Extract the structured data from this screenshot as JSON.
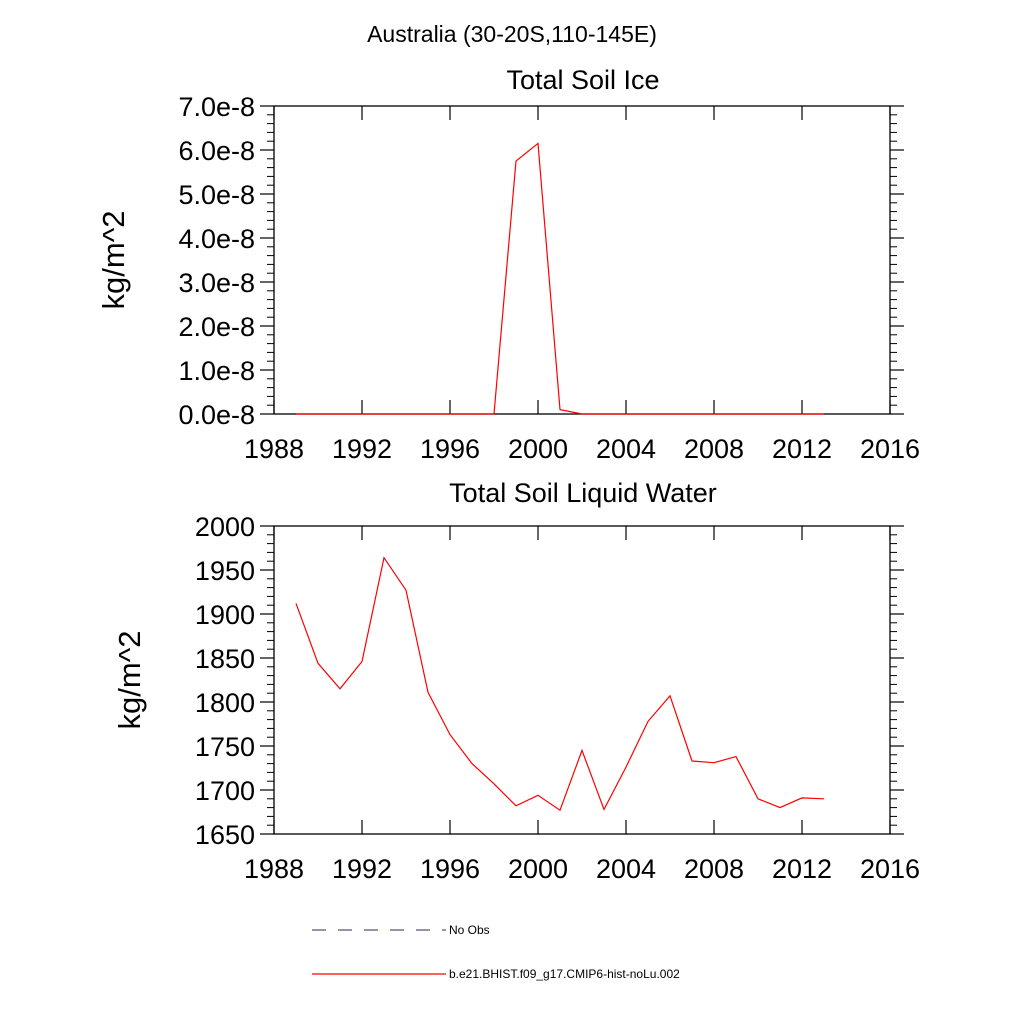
{
  "figure_title": "Australia (30-20S,110-145E)",
  "chart_data": [
    {
      "type": "line",
      "title": "Total Soil Ice",
      "xlabel": "",
      "ylabel": "kg/m^2",
      "xlim": [
        1988,
        2016
      ],
      "ylim": [
        0,
        7e-08
      ],
      "x_ticks": [
        1988,
        1992,
        1996,
        2000,
        2004,
        2008,
        2012,
        2016
      ],
      "y_ticks": [
        0,
        1e-08,
        2e-08,
        3e-08,
        4e-08,
        5e-08,
        6e-08,
        7e-08
      ],
      "y_tick_labels": [
        "0.0e-8",
        "1.0e-8",
        "2.0e-8",
        "3.0e-8",
        "4.0e-8",
        "5.0e-8",
        "6.0e-8",
        "7.0e-8"
      ],
      "grid": false,
      "series": [
        {
          "name": "b.e21.BHIST.f09_g17.CMIP6-hist-noLu.002",
          "color": "#ff0000",
          "x": [
            1989,
            1990,
            1991,
            1992,
            1993,
            1994,
            1995,
            1996,
            1997,
            1998,
            1999,
            2000,
            2001,
            2002,
            2003,
            2004,
            2005,
            2006,
            2007,
            2008,
            2009,
            2010,
            2011,
            2012,
            2013
          ],
          "y": [
            0,
            0,
            0,
            0,
            0,
            0,
            0,
            0,
            0,
            0,
            5.75e-08,
            6.15e-08,
            1e-09,
            0,
            0,
            0,
            0,
            0,
            0,
            0,
            0,
            0,
            0,
            0,
            0
          ]
        }
      ]
    },
    {
      "type": "line",
      "title": "Total Soil Liquid Water",
      "xlabel": "",
      "ylabel": "kg/m^2",
      "xlim": [
        1988,
        2016
      ],
      "ylim": [
        1650,
        2000
      ],
      "x_ticks": [
        1988,
        1992,
        1996,
        2000,
        2004,
        2008,
        2012,
        2016
      ],
      "y_ticks": [
        1650,
        1700,
        1750,
        1800,
        1850,
        1900,
        1950,
        2000
      ],
      "y_tick_labels": [
        "1650",
        "1700",
        "1750",
        "1800",
        "1850",
        "1900",
        "1950",
        "2000"
      ],
      "grid": false,
      "series": [
        {
          "name": "b.e21.BHIST.f09_g17.CMIP6-hist-noLu.002",
          "color": "#ff0000",
          "x": [
            1989,
            1990,
            1991,
            1992,
            1993,
            1994,
            1995,
            1996,
            1997,
            1998,
            1999,
            2000,
            2001,
            2002,
            2003,
            2004,
            2005,
            2006,
            2007,
            2008,
            2009,
            2010,
            2011,
            2012,
            2013
          ],
          "y": [
            1912,
            1844,
            1815,
            1846,
            1964,
            1927,
            1811,
            1763,
            1730,
            1707,
            1682,
            1694,
            1677,
            1745,
            1678,
            1726,
            1778,
            1807,
            1733,
            1731,
            1738,
            1690,
            1680,
            1691,
            1690
          ]
        }
      ]
    }
  ],
  "legend": {
    "position": "bottom-center",
    "items": [
      {
        "label": "No Obs",
        "style": "dashed",
        "color": "#555577"
      },
      {
        "label": "b.e21.BHIST.f09_g17.CMIP6-hist-noLu.002",
        "style": "solid",
        "color": "#ff0000"
      }
    ]
  }
}
